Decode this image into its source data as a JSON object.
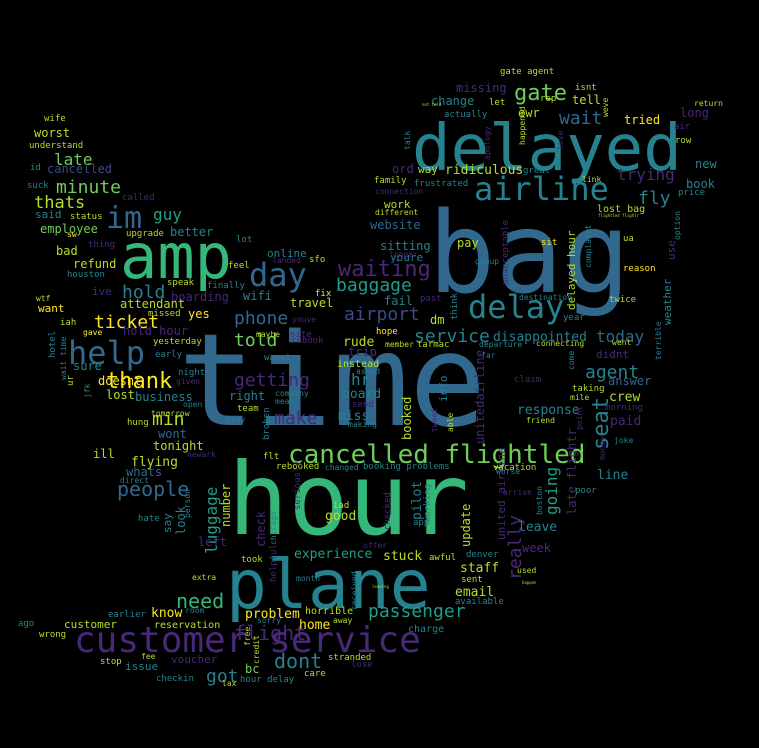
{
  "palette": {
    "background": "#000000",
    "teal": "#26828e",
    "blue": "#31688e",
    "indigo": "#3e4989",
    "purple": "#482878",
    "violet": "#440154",
    "green": "#35b779",
    "light_green": "#6ece58",
    "lime": "#b5de2b",
    "yellow": "#fde725",
    "cyan": "#1f9e89"
  },
  "words": [
    {
      "text": "time",
      "color": "blue"
    },
    {
      "text": "bag",
      "color": "blue"
    },
    {
      "text": "hour",
      "color": "green"
    },
    {
      "text": "delayed",
      "color": "teal"
    },
    {
      "text": "plane",
      "color": "teal"
    },
    {
      "text": "amp",
      "color": "green"
    },
    {
      "text": "customer service",
      "color": "purple"
    },
    {
      "text": "airline",
      "color": "teal"
    },
    {
      "text": "cancelled flightled",
      "color": "light_green"
    },
    {
      "text": "help",
      "color": "blue"
    },
    {
      "text": "delay",
      "color": "teal"
    },
    {
      "text": "day",
      "color": "blue"
    },
    {
      "text": "im",
      "color": "blue"
    },
    {
      "text": "gate",
      "color": "light_green"
    },
    {
      "text": "seat",
      "color": "teal"
    },
    {
      "text": "waiting",
      "color": "purple"
    },
    {
      "text": "thank",
      "color": "yellow"
    },
    {
      "text": "people",
      "color": "blue"
    },
    {
      "text": "need",
      "color": "green"
    },
    {
      "text": "dont",
      "color": "teal"
    },
    {
      "text": "passenger",
      "color": "cyan"
    },
    {
      "text": "baggage",
      "color": "cyan"
    },
    {
      "text": "airport",
      "color": "indigo"
    },
    {
      "text": "service",
      "color": "teal"
    },
    {
      "text": "wait",
      "color": "blue"
    },
    {
      "text": "flight",
      "color": "purple"
    },
    {
      "text": "told",
      "color": "light_green"
    },
    {
      "text": "getting",
      "color": "purple"
    },
    {
      "text": "phone",
      "color": "blue"
    },
    {
      "text": "hold",
      "color": "teal"
    },
    {
      "text": "ticket",
      "color": "yellow"
    },
    {
      "text": "minute",
      "color": "light_green"
    },
    {
      "text": "thats",
      "color": "lime"
    },
    {
      "text": "late",
      "color": "light_green"
    },
    {
      "text": "make",
      "color": "purple"
    },
    {
      "text": "min",
      "color": "lime"
    },
    {
      "text": "fly",
      "color": "teal"
    },
    {
      "text": "trying",
      "color": "purple"
    },
    {
      "text": "agent",
      "color": "teal"
    },
    {
      "text": "today",
      "color": "blue"
    },
    {
      "text": "guy",
      "color": "cyan"
    },
    {
      "text": "luggage",
      "color": "cyan"
    },
    {
      "text": "going",
      "color": "cyan"
    },
    {
      "text": "really",
      "color": "purple"
    },
    {
      "text": "got",
      "color": "teal"
    },
    {
      "text": "experience",
      "color": "cyan"
    },
    {
      "text": "stuck",
      "color": "lime"
    },
    {
      "text": "staff",
      "color": "lime"
    },
    {
      "text": "email",
      "color": "lime"
    },
    {
      "text": "home",
      "color": "yellow"
    },
    {
      "text": "problem",
      "color": "yellow"
    },
    {
      "text": "know",
      "color": "yellow"
    },
    {
      "text": "worst",
      "color": "lime"
    },
    {
      "text": "employee",
      "color": "light_green"
    },
    {
      "text": "missing",
      "color": "purple"
    },
    {
      "text": "change",
      "color": "teal"
    },
    {
      "text": "ridiculous",
      "color": "lime"
    },
    {
      "text": "disappointed",
      "color": "teal"
    },
    {
      "text": "response",
      "color": "teal"
    },
    {
      "text": "crew",
      "color": "lime"
    },
    {
      "text": "paid",
      "color": "purple"
    },
    {
      "text": "booked",
      "color": "lime"
    },
    {
      "text": "update",
      "color": "lime"
    },
    {
      "text": "good",
      "color": "lime"
    },
    {
      "text": "pilot",
      "color": "teal"
    },
    {
      "text": "leave",
      "color": "teal"
    },
    {
      "text": "week",
      "color": "purple"
    },
    {
      "text": "line",
      "color": "teal"
    },
    {
      "text": "flying",
      "color": "lime"
    },
    {
      "text": "whats",
      "color": "blue"
    },
    {
      "text": "wont",
      "color": "blue"
    },
    {
      "text": "tonight",
      "color": "lime"
    },
    {
      "text": "doesnt",
      "color": "yellow"
    },
    {
      "text": "lost",
      "color": "lime"
    },
    {
      "text": "yes",
      "color": "yellow"
    },
    {
      "text": "hr",
      "color": "teal"
    },
    {
      "text": "miss",
      "color": "teal"
    },
    {
      "text": "board",
      "color": "teal"
    },
    {
      "text": "rude",
      "color": "lime"
    },
    {
      "text": "answer",
      "color": "blue"
    },
    {
      "text": "tell",
      "color": "lime"
    },
    {
      "text": "ewr",
      "color": "lime"
    },
    {
      "text": "work",
      "color": "lime"
    },
    {
      "text": "pay",
      "color": "lime"
    },
    {
      "text": "long",
      "color": "purple"
    },
    {
      "text": "tried",
      "color": "yellow"
    },
    {
      "text": "book",
      "color": "teal"
    },
    {
      "text": "new",
      "color": "teal"
    },
    {
      "text": "sitting",
      "color": "teal"
    },
    {
      "text": "website",
      "color": "blue"
    },
    {
      "text": "fail",
      "color": "teal"
    },
    {
      "text": "travel",
      "color": "lime"
    },
    {
      "text": "online",
      "color": "teal"
    },
    {
      "text": "wifi",
      "color": "teal"
    },
    {
      "text": "boarding",
      "color": "purple"
    },
    {
      "text": "attendant",
      "color": "lime"
    },
    {
      "text": "refund",
      "color": "lime"
    },
    {
      "text": "ive",
      "color": "purple"
    },
    {
      "text": "bad",
      "color": "lime"
    },
    {
      "text": "said",
      "color": "teal"
    },
    {
      "text": "want",
      "color": "yellow"
    },
    {
      "text": "sure",
      "color": "teal"
    },
    {
      "text": "business",
      "color": "teal"
    },
    {
      "text": "right",
      "color": "teal"
    },
    {
      "text": "better",
      "color": "teal"
    },
    {
      "text": "hold hour",
      "color": "purple"
    },
    {
      "text": "delayed hour",
      "color": "lime"
    },
    {
      "text": "cancelled",
      "color": "indigo"
    },
    {
      "text": "voucher",
      "color": "purple"
    },
    {
      "text": "issue",
      "color": "teal"
    },
    {
      "text": "customer",
      "color": "lime"
    },
    {
      "text": "reservation",
      "color": "lime"
    },
    {
      "text": "horrible",
      "color": "lime"
    },
    {
      "text": "charge",
      "color": "teal"
    },
    {
      "text": "bc",
      "color": "light_green"
    },
    {
      "text": "gate agent",
      "color": "lime"
    },
    {
      "text": "lost bag",
      "color": "lime"
    },
    {
      "text": "ill",
      "color": "lime"
    },
    {
      "text": "look",
      "color": "teal"
    },
    {
      "text": "say",
      "color": "teal"
    },
    {
      "text": "number",
      "color": "lime"
    },
    {
      "text": "left",
      "color": "purple"
    },
    {
      "text": "late flightr",
      "color": "purple"
    },
    {
      "text": "united airline",
      "color": "purple"
    },
    {
      "text": "unitedairline",
      "color": "purple"
    },
    {
      "text": "check",
      "color": "purple"
    },
    {
      "text": "way",
      "color": "lime"
    },
    {
      "text": "ord",
      "color": "purple"
    },
    {
      "text": "dm",
      "color": "lime"
    },
    {
      "text": "info",
      "color": "teal"
    },
    {
      "text": "youre",
      "color": "teal"
    },
    {
      "text": "didnt",
      "color": "purple"
    },
    {
      "text": "instead",
      "color": "lime"
    },
    {
      "text": "trip",
      "color": "purple"
    },
    {
      "text": "understand",
      "color": "lime"
    },
    {
      "text": "wife",
      "color": "lime"
    },
    {
      "text": "houston",
      "color": "teal"
    },
    {
      "text": "upgrade",
      "color": "lime"
    },
    {
      "text": "status",
      "color": "lime"
    },
    {
      "text": "called",
      "color": "purple"
    },
    {
      "text": "suck",
      "color": "teal"
    },
    {
      "text": "id",
      "color": "teal"
    },
    {
      "text": "thing",
      "color": "purple"
    },
    {
      "text": "lot",
      "color": "teal"
    },
    {
      "text": "feel",
      "color": "lime"
    },
    {
      "text": "speak",
      "color": "lime"
    },
    {
      "text": "finally",
      "color": "teal"
    },
    {
      "text": "missed",
      "color": "lime"
    },
    {
      "text": "gave",
      "color": "yellow"
    },
    {
      "text": "yesterday",
      "color": "lime"
    },
    {
      "text": "early",
      "color": "teal"
    },
    {
      "text": "hotel",
      "color": "teal"
    },
    {
      "text": "wait time",
      "color": "teal"
    },
    {
      "text": "iah",
      "color": "lime"
    },
    {
      "text": "jfk",
      "color": "teal"
    },
    {
      "text": "ur",
      "color": "lime"
    },
    {
      "text": "wtf",
      "color": "lime"
    },
    {
      "text": "sw",
      "color": "yellow"
    },
    {
      "text": "night",
      "color": "teal"
    },
    {
      "text": "given",
      "color": "purple"
    },
    {
      "text": "open",
      "color": "teal"
    },
    {
      "text": "hung",
      "color": "lime"
    },
    {
      "text": "tomorrow",
      "color": "lime"
    },
    {
      "text": "team",
      "color": "lime"
    },
    {
      "text": "stay",
      "color": "teal"
    },
    {
      "text": "company",
      "color": "teal"
    },
    {
      "text": "mean",
      "color": "teal"
    },
    {
      "text": "wasnt",
      "color": "teal"
    },
    {
      "text": "rebook",
      "color": "purple"
    },
    {
      "text": "site",
      "color": "purple"
    },
    {
      "text": "youve",
      "color": "purple"
    },
    {
      "text": "maybe",
      "color": "lime"
    },
    {
      "text": "landed",
      "color": "purple"
    },
    {
      "text": "sfo",
      "color": "lime"
    },
    {
      "text": "fix",
      "color": "yellow"
    },
    {
      "text": "hope",
      "color": "yellow"
    },
    {
      "text": "asked",
      "color": "teal"
    },
    {
      "text": "member",
      "color": "lime"
    },
    {
      "text": "tarmac",
      "color": "lime"
    },
    {
      "text": "past",
      "color": "purple"
    },
    {
      "text": "think",
      "color": "teal"
    },
    {
      "text": "send",
      "color": "purple"
    },
    {
      "text": "making",
      "color": "teal"
    },
    {
      "text": "broken",
      "color": "teal"
    },
    {
      "text": "flt",
      "color": "lime"
    },
    {
      "text": "rebooked",
      "color": "lime"
    },
    {
      "text": "changed",
      "color": "teal"
    },
    {
      "text": "booking problems",
      "color": "teal"
    },
    {
      "text": "vacation",
      "color": "lime"
    },
    {
      "text": "seriously",
      "color": "purple"
    },
    {
      "text": "iad",
      "color": "lime"
    },
    {
      "text": "checked",
      "color": "purple"
    },
    {
      "text": "working",
      "color": "teal"
    },
    {
      "text": "app",
      "color": "teal"
    },
    {
      "text": "offer",
      "color": "purple"
    },
    {
      "text": "awful",
      "color": "lime"
    },
    {
      "text": "denver",
      "color": "teal"
    },
    {
      "text": "sent",
      "color": "lime"
    },
    {
      "text": "available",
      "color": "teal"
    },
    {
      "text": "received",
      "color": "teal"
    },
    {
      "text": "took",
      "color": "lime"
    },
    {
      "text": "month",
      "color": "teal"
    },
    {
      "text": "helpful",
      "color": "purple"
    },
    {
      "text": "chicago",
      "color": "teal"
    },
    {
      "text": "extra",
      "color": "lime"
    },
    {
      "text": "earlier",
      "color": "teal"
    },
    {
      "text": "room",
      "color": "teal"
    },
    {
      "text": "sorry",
      "color": "teal"
    },
    {
      "text": "away",
      "color": "lime"
    },
    {
      "text": "stranded",
      "color": "lime"
    },
    {
      "text": "lose",
      "color": "purple"
    },
    {
      "text": "care",
      "color": "lime"
    },
    {
      "text": "hour delay",
      "color": "teal"
    },
    {
      "text": "lax",
      "color": "lime"
    },
    {
      "text": "checkin",
      "color": "teal"
    },
    {
      "text": "credit",
      "color": "lime"
    },
    {
      "text": "free",
      "color": "lime"
    },
    {
      "text": "fee",
      "color": "lime"
    },
    {
      "text": "stop",
      "color": "lime"
    },
    {
      "text": "ago",
      "color": "teal"
    },
    {
      "text": "wrong",
      "color": "lime"
    },
    {
      "text": "ua",
      "color": "lime"
    },
    {
      "text": "reason",
      "color": "yellow"
    },
    {
      "text": "twice",
      "color": "lime"
    },
    {
      "text": "weather",
      "color": "teal"
    },
    {
      "text": "use",
      "color": "purple"
    },
    {
      "text": "option",
      "color": "teal"
    },
    {
      "text": "price",
      "color": "teal"
    },
    {
      "text": "row",
      "color": "lime"
    },
    {
      "text": "air",
      "color": "purple"
    },
    {
      "text": "return",
      "color": "lime"
    },
    {
      "text": "weve",
      "color": "lime"
    },
    {
      "text": "isnt",
      "color": "lime"
    },
    {
      "text": "rep",
      "color": "lime"
    },
    {
      "text": "let",
      "color": "lime"
    },
    {
      "text": "actually",
      "color": "teal"
    },
    {
      "text": "talk",
      "color": "teal"
    },
    {
      "text": "family",
      "color": "lime"
    },
    {
      "text": "frustrated",
      "color": "teal"
    },
    {
      "text": "connection",
      "color": "purple"
    },
    {
      "text": "different",
      "color": "lime"
    },
    {
      "text": "unacceptable",
      "color": "purple"
    },
    {
      "text": "group",
      "color": "teal"
    },
    {
      "text": "sit",
      "color": "yellow"
    },
    {
      "text": "great",
      "color": "teal"
    },
    {
      "text": "link",
      "color": "lime"
    },
    {
      "text": "love",
      "color": "purple"
    },
    {
      "text": "destination",
      "color": "teal"
    },
    {
      "text": "departure",
      "color": "teal"
    },
    {
      "text": "connecting",
      "color": "lime"
    },
    {
      "text": "year",
      "color": "teal"
    },
    {
      "text": "claim",
      "color": "purple"
    },
    {
      "text": "come",
      "color": "teal"
    },
    {
      "text": "went",
      "color": "lime"
    },
    {
      "text": "taking",
      "color": "lime"
    },
    {
      "text": "mile",
      "color": "lime"
    },
    {
      "text": "point",
      "color": "purple"
    },
    {
      "text": "friend",
      "color": "lime"
    },
    {
      "text": "morning",
      "color": "purple"
    },
    {
      "text": "joke",
      "color": "teal"
    },
    {
      "text": "money",
      "color": "purple"
    },
    {
      "text": "terrible",
      "color": "teal"
    },
    {
      "text": "tweet",
      "color": "purple"
    },
    {
      "text": "able",
      "color": "lime"
    },
    {
      "text": "worse",
      "color": "teal"
    },
    {
      "text": "boston",
      "color": "teal"
    },
    {
      "text": "arrive",
      "color": "purple"
    },
    {
      "text": "poor",
      "color": "teal"
    },
    {
      "text": "used",
      "color": "lime"
    },
    {
      "text": "far",
      "color": "teal"
    },
    {
      "text": "apology",
      "color": "purple"
    },
    {
      "text": "happened",
      "color": "lime"
    },
    {
      "text": "complaint",
      "color": "teal"
    },
    {
      "text": "longer",
      "color": "purple"
    },
    {
      "text": "direct",
      "color": "teal"
    },
    {
      "text": "newark",
      "color": "purple"
    },
    {
      "text": "hate",
      "color": "teal"
    },
    {
      "text": "person",
      "color": "teal"
    },
    {
      "text": "leaving",
      "color": "lime"
    },
    {
      "text": "happen",
      "color": "lime"
    },
    {
      "text": "flightled flightr",
      "color": "lime"
    },
    {
      "text": "not told",
      "color": "lime"
    }
  ]
}
